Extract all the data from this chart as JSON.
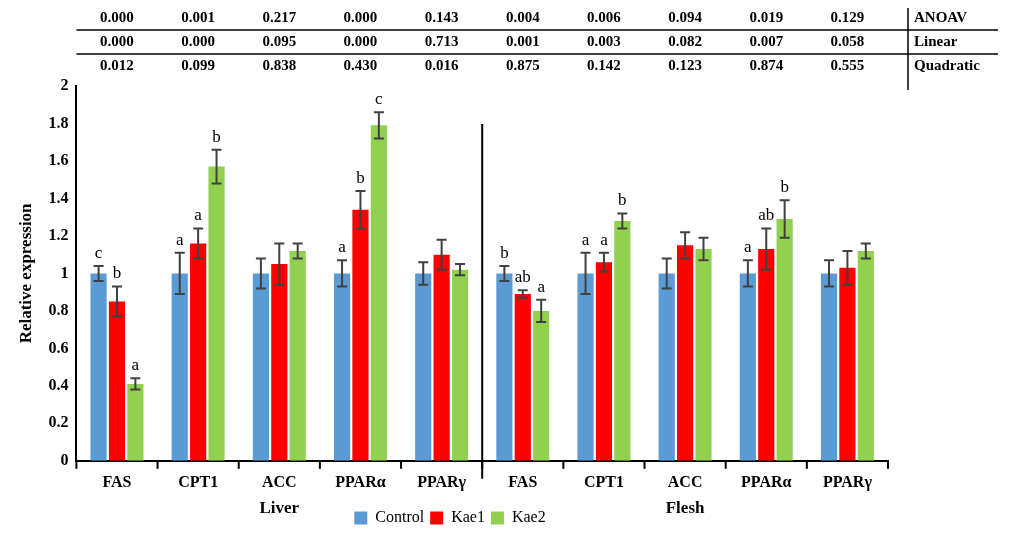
{
  "chart_data": {
    "type": "bar",
    "ylabel": "Relative expression",
    "categories": [
      "FAS",
      "CPT1",
      "ACC",
      "PPARα",
      "PPARγ",
      "FAS",
      "CPT1",
      "ACC",
      "PPARα",
      "PPARγ"
    ],
    "series": [
      {
        "name": "Control",
        "color": "#5b9bd5",
        "values": [
          1.0,
          1.0,
          1.0,
          1.0,
          1.0,
          1.0,
          1.0,
          1.0,
          1.0,
          1.0
        ],
        "errors": [
          0.04,
          0.11,
          0.08,
          0.07,
          0.06,
          0.04,
          0.11,
          0.08,
          0.07,
          0.07
        ],
        "value_labels": [
          "c",
          "a",
          null,
          "a",
          null,
          "b",
          "a",
          null,
          "a",
          null
        ]
      },
      {
        "name": "Kae1",
        "color": "#ff0000",
        "values": [
          0.85,
          1.16,
          1.05,
          1.34,
          1.1,
          0.89,
          1.06,
          1.15,
          1.13,
          1.03
        ],
        "errors": [
          0.08,
          0.08,
          0.11,
          0.1,
          0.08,
          0.02,
          0.05,
          0.07,
          0.11,
          0.09
        ],
        "value_labels": [
          "b",
          "a",
          null,
          "b",
          null,
          "ab",
          "a",
          null,
          "ab",
          null
        ]
      },
      {
        "name": "Kae2",
        "color": "#92d050",
        "values": [
          0.41,
          1.57,
          1.12,
          1.79,
          1.02,
          0.8,
          1.28,
          1.13,
          1.29,
          1.12
        ],
        "errors": [
          0.03,
          0.09,
          0.04,
          0.07,
          0.03,
          0.06,
          0.04,
          0.06,
          0.1,
          0.04
        ],
        "value_labels": [
          "a",
          "b",
          null,
          "c",
          null,
          "a",
          "b",
          null,
          "b",
          null
        ]
      }
    ],
    "ylim": [
      0,
      2
    ],
    "yticks": [
      0,
      0.2,
      0.4,
      0.6,
      0.8,
      1,
      1.2,
      1.4,
      1.6,
      1.8,
      2
    ],
    "grid": false,
    "legend": "bottom",
    "annotations": [
      "0.000",
      "0.001",
      "0.217",
      "0.000",
      "0.143",
      "0.004",
      "0.006",
      "0.094",
      "0.019",
      "0.129",
      "ANOAV",
      "0.000",
      "0.000",
      "0.095",
      "0.000",
      "0.713",
      "0.001",
      "0.003",
      "0.082",
      "0.007",
      "0.058",
      "Linear",
      "0.012",
      "0.099",
      "0.838",
      "0.430",
      "0.016",
      "0.875",
      "0.142",
      "0.123",
      "0.874",
      "0.555",
      "Quadratic",
      "Liver",
      "Flesh"
    ]
  }
}
